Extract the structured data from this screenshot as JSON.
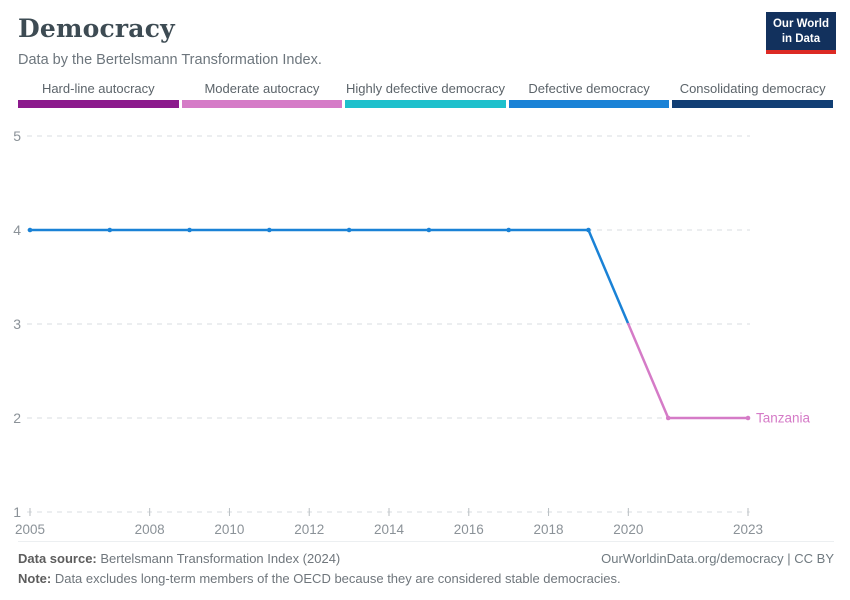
{
  "header": {
    "title": "Democracy",
    "subtitle": "Data by the Bertelsmann Transformation Index."
  },
  "logo": {
    "line1": "Our World",
    "line2": "in Data",
    "bg_color": "#12315d",
    "accent_color": "#dc2a24"
  },
  "legend": {
    "items": [
      {
        "label": "Hard-line autocracy",
        "color": "#8b1a8c"
      },
      {
        "label": "Moderate autocracy",
        "color": "#d57bc7"
      },
      {
        "label": "Highly defective democracy",
        "color": "#1ec0cc"
      },
      {
        "label": "Defective democracy",
        "color": "#1a82d6"
      },
      {
        "label": "Consolidating democracy",
        "color": "#113e74"
      }
    ]
  },
  "chart_data": {
    "type": "line",
    "title": "Democracy",
    "entity": "Tanzania",
    "xlim": [
      2005,
      2023
    ],
    "ylim": [
      1,
      5
    ],
    "x_ticks": [
      2005,
      2008,
      2010,
      2012,
      2014,
      2016,
      2018,
      2020,
      2023
    ],
    "y_ticks": [
      1,
      2,
      3,
      4,
      5
    ],
    "grid": "dashed-horizontal",
    "points": [
      {
        "year": 2005,
        "value": 4,
        "color": "#1a82d6"
      },
      {
        "year": 2007,
        "value": 4,
        "color": "#1a82d6"
      },
      {
        "year": 2009,
        "value": 4,
        "color": "#1a82d6"
      },
      {
        "year": 2011,
        "value": 4,
        "color": "#1a82d6"
      },
      {
        "year": 2013,
        "value": 4,
        "color": "#1a82d6"
      },
      {
        "year": 2015,
        "value": 4,
        "color": "#1a82d6"
      },
      {
        "year": 2017,
        "value": 4,
        "color": "#1a82d6"
      },
      {
        "year": 2019,
        "value": 4,
        "color": "#1a82d6"
      },
      {
        "year": 2021,
        "value": 2,
        "color": "#d57bc7"
      },
      {
        "year": 2023,
        "value": 2,
        "color": "#d57bc7"
      }
    ],
    "line_segments": [
      {
        "color": "#1a82d6",
        "points": [
          [
            2005,
            4
          ],
          [
            2007,
            4
          ],
          [
            2009,
            4
          ],
          [
            2011,
            4
          ],
          [
            2013,
            4
          ],
          [
            2015,
            4
          ],
          [
            2017,
            4
          ],
          [
            2019,
            4
          ],
          [
            2020,
            3
          ]
        ]
      },
      {
        "color": "#d57bc7",
        "points": [
          [
            2020,
            3
          ],
          [
            2021,
            2
          ],
          [
            2023,
            2
          ]
        ]
      }
    ],
    "end_label": {
      "text": "Tanzania",
      "color": "#d57bc7"
    },
    "axis_color": "#8b9298",
    "gridline_color": "#dadee0",
    "tick_color": "#b8bec2"
  },
  "footer": {
    "source_label": "Data source:",
    "source_text": " Bertelsmann Transformation Index (2024)",
    "attribution": "OurWorldinData.org/democracy | CC BY",
    "note_label": "Note:",
    "note_text": " Data excludes long-term members of the OECD because they are considered stable democracies."
  }
}
